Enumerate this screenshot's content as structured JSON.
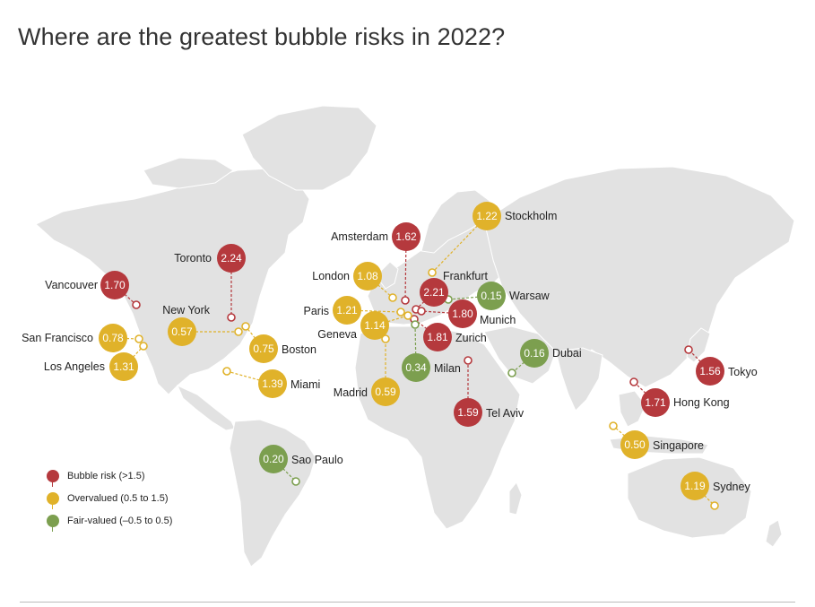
{
  "title": "Where are the greatest bubble risks in 2022?",
  "colors": {
    "bubble_risk": "#b5393d",
    "overvalued": "#e0b22a",
    "fair_valued": "#7c9f4f",
    "land": "#e2e2e2"
  },
  "legend": [
    {
      "category": "bubble_risk",
      "label": "Bubble risk (>1.5)"
    },
    {
      "category": "overvalued",
      "label": "Overvalued (0.5 to 1.5)"
    },
    {
      "category": "fair_valued",
      "label": "Fair-valued (–0.5 to 0.5)"
    }
  ],
  "cities": [
    {
      "name": "Toronto",
      "value": "2.24",
      "category": "bubble_risk"
    },
    {
      "name": "Frankfurt",
      "value": "2.21",
      "category": "bubble_risk"
    },
    {
      "name": "Zurich",
      "value": "1.81",
      "category": "bubble_risk"
    },
    {
      "name": "Munich",
      "value": "1.80",
      "category": "bubble_risk"
    },
    {
      "name": "Hong Kong",
      "value": "1.71",
      "category": "bubble_risk"
    },
    {
      "name": "Vancouver",
      "value": "1.70",
      "category": "bubble_risk"
    },
    {
      "name": "Amsterdam",
      "value": "1.62",
      "category": "bubble_risk"
    },
    {
      "name": "Tel Aviv",
      "value": "1.59",
      "category": "bubble_risk"
    },
    {
      "name": "Tokyo",
      "value": "1.56",
      "category": "bubble_risk"
    },
    {
      "name": "Miami",
      "value": "1.39",
      "category": "overvalued"
    },
    {
      "name": "Los Angeles",
      "value": "1.31",
      "category": "overvalued"
    },
    {
      "name": "Stockholm",
      "value": "1.22",
      "category": "overvalued"
    },
    {
      "name": "Paris",
      "value": "1.21",
      "category": "overvalued"
    },
    {
      "name": "Sydney",
      "value": "1.19",
      "category": "overvalued"
    },
    {
      "name": "Geneva",
      "value": "1.14",
      "category": "overvalued"
    },
    {
      "name": "London",
      "value": "1.08",
      "category": "overvalued"
    },
    {
      "name": "San Francisco",
      "value": "0.78",
      "category": "overvalued"
    },
    {
      "name": "Boston",
      "value": "0.75",
      "category": "overvalued"
    },
    {
      "name": "Madrid",
      "value": "0.59",
      "category": "overvalued"
    },
    {
      "name": "New York",
      "value": "0.57",
      "category": "overvalued"
    },
    {
      "name": "Singapore",
      "value": "0.50",
      "category": "overvalued"
    },
    {
      "name": "Milan",
      "value": "0.34",
      "category": "fair_valued"
    },
    {
      "name": "Sao Paulo",
      "value": "0.20",
      "category": "fair_valued"
    },
    {
      "name": "Dubai",
      "value": "0.16",
      "category": "fair_valued"
    },
    {
      "name": "Warsaw",
      "value": "0.15",
      "category": "fair_valued"
    }
  ]
}
